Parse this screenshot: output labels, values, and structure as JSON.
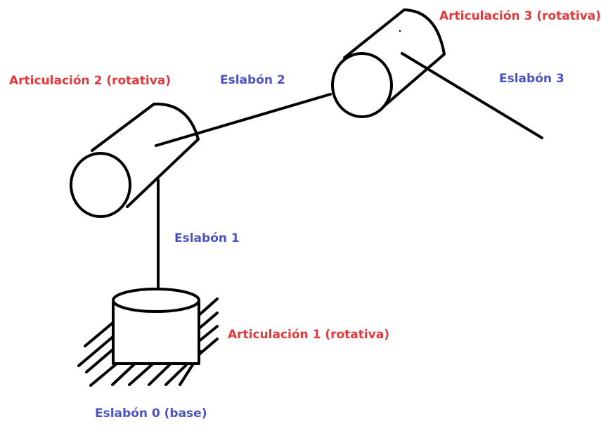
{
  "labels": {
    "joint_3": "Articulación 3 (rotativa)",
    "joint_2": "Articulación 2 (rotativa)",
    "joint_1": "Articulación 1 (rotativa)",
    "link_0": "Eslabón 0 (base)",
    "link_1": "Eslabón 1",
    "link_2": "Eslabón 2",
    "link_3": "Eslabón 3"
  },
  "colors": {
    "joint_label": "#e5383c",
    "link_label": "#4a52c6",
    "stroke": "#000000"
  }
}
